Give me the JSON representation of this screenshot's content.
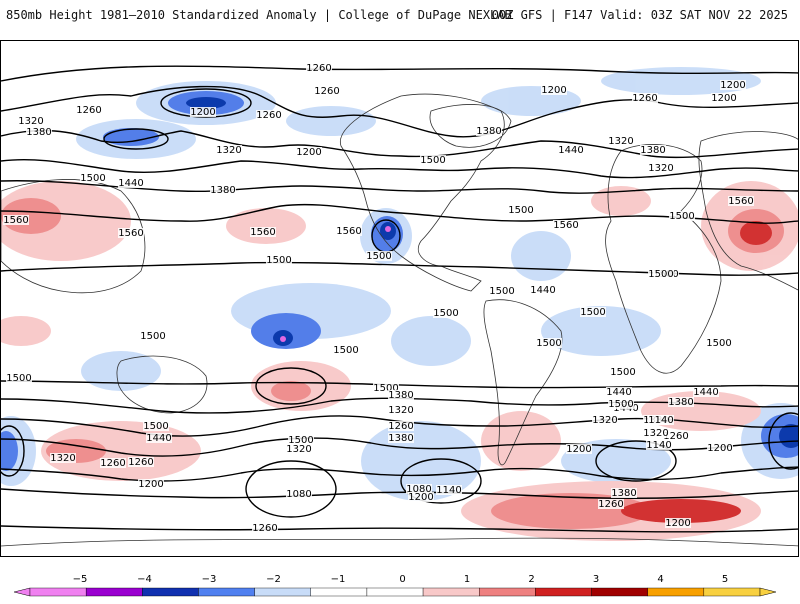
{
  "header": {
    "title_left": "850mb Height 1981–2010 Standardized Anomaly | College of DuPage NEXLAB",
    "title_right": "00Z GFS | F147 Valid: 03Z SAT NOV 22 2025"
  },
  "map": {
    "contour_labels": [
      "1260",
      "1260",
      "1200",
      "1260",
      "1380",
      "1320",
      "1500",
      "1440",
      "1380",
      "1560",
      "1320",
      "1200",
      "1260",
      "1200",
      "1320",
      "1380",
      "1500",
      "1440",
      "1560",
      "1560",
      "1500",
      "1500",
      "1440",
      "1500",
      "1380",
      "1320",
      "1260",
      "1200",
      "1560",
      "1500",
      "1500",
      "1500",
      "1500",
      "1500",
      "1500",
      "1500",
      "1500",
      "1500",
      "1560",
      "1560",
      "1500",
      "1500",
      "1500",
      "1500",
      "1440",
      "1380",
      "1320",
      "1260",
      "1200",
      "1140",
      "1080",
      "1080",
      "1140",
      "1200",
      "1260",
      "1320",
      "1380",
      "1440",
      "1500",
      "1260",
      "1200",
      "1320",
      "1380",
      "1440",
      "1500",
      "1140",
      "1200",
      "1320",
      "1260",
      "1200",
      "1380",
      "1500",
      "1440",
      "1380",
      "1260",
      "1320",
      "1200",
      "1260"
    ],
    "colors": {
      "neg5": "#e060e0",
      "neg4": "#8a00c8",
      "neg3": "#0030a8",
      "neg2": "#4a78e8",
      "neg1": "#c8dcf8",
      "pos1": "#f8c8c8",
      "pos2": "#ee8a8a",
      "pos3": "#d02828",
      "pos4": "#a00000",
      "pos5": "#f8a000"
    }
  },
  "colorbar": {
    "ticks": [
      "−5",
      "−4",
      "−3",
      "−2",
      "−1",
      "0",
      "1",
      "2",
      "3",
      "4",
      "5"
    ],
    "colors": [
      "#f080f0",
      "#9a00d0",
      "#1030b0",
      "#5080f0",
      "#c8dcf8",
      "#ffffff",
      "#ffffff",
      "#f8c8c8",
      "#ee8080",
      "#d02020",
      "#a00000",
      "#f8a000",
      "#f8d040"
    ]
  }
}
